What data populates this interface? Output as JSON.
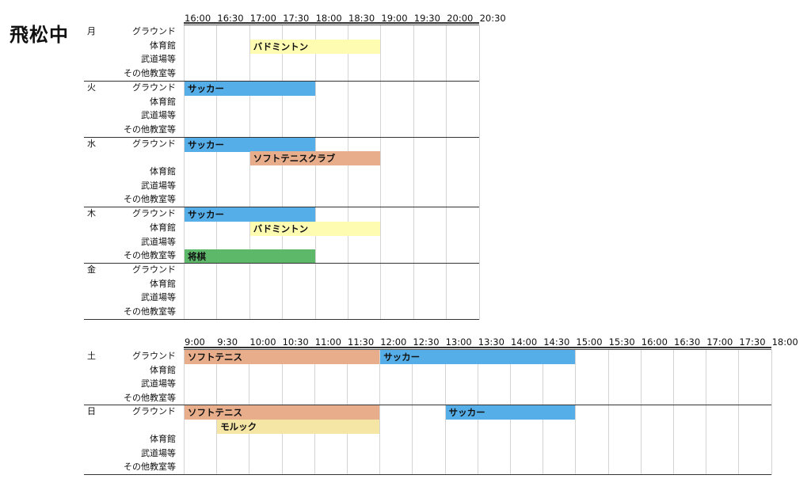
{
  "title": "飛松中",
  "weekday": {
    "times": [
      "16:00",
      "16:30",
      "17:00",
      "17:30",
      "18:00",
      "18:30",
      "19:00",
      "19:30",
      "20:00",
      "20:30"
    ],
    "days": [
      {
        "day": "月",
        "facilities": [
          "グラウンド",
          "体育館",
          "武道場等",
          "その他教室等"
        ],
        "events": [
          {
            "label": "バドミントン",
            "start": "17:00",
            "end": "19:00",
            "row": 1,
            "color": "#fefcb0"
          }
        ]
      },
      {
        "day": "火",
        "facilities": [
          "グラウンド",
          "体育館",
          "武道場等",
          "その他教室等"
        ],
        "events": [
          {
            "label": "サッカー",
            "start": "16:00",
            "end": "18:00",
            "row": 0,
            "color": "#55aee8"
          }
        ]
      },
      {
        "day": "水",
        "facilities": [
          "グラウンド",
          "",
          "体育館",
          "武道場等",
          "その他教室等"
        ],
        "events": [
          {
            "label": "サッカー",
            "start": "16:00",
            "end": "18:00",
            "row": 0,
            "color": "#55aee8"
          },
          {
            "label": "ソフトテニスクラブ",
            "start": "17:00",
            "end": "19:00",
            "row": 1,
            "color": "#e8ae8b"
          }
        ]
      },
      {
        "day": "木",
        "facilities": [
          "グラウンド",
          "体育館",
          "武道場等",
          "その他教室等"
        ],
        "events": [
          {
            "label": "サッカー",
            "start": "16:00",
            "end": "18:00",
            "row": 0,
            "color": "#55aee8"
          },
          {
            "label": "バドミントン",
            "start": "17:00",
            "end": "19:00",
            "row": 1,
            "color": "#fefcb0"
          },
          {
            "label": "将棋",
            "start": "16:00",
            "end": "18:00",
            "row": 3,
            "color": "#5db86a"
          }
        ]
      },
      {
        "day": "金",
        "facilities": [
          "グラウンド",
          "体育館",
          "武道場等",
          "その他教室等"
        ],
        "events": []
      }
    ]
  },
  "weekend": {
    "times": [
      "9:00",
      "9:30",
      "10:00",
      "10:30",
      "11:00",
      "11:30",
      "12:00",
      "12:30",
      "13:00",
      "13:30",
      "14:00",
      "14:30",
      "15:00",
      "15:30",
      "16:00",
      "16:30",
      "17:00",
      "17:30",
      "18:00"
    ],
    "days": [
      {
        "day": "土",
        "facilities": [
          "グラウンド",
          "体育館",
          "武道場等",
          "その他教室等"
        ],
        "events": [
          {
            "label": "ソフトテニス",
            "start": "9:00",
            "end": "12:00",
            "row": 0,
            "color": "#e8ae8b"
          },
          {
            "label": "サッカー",
            "start": "12:00",
            "end": "15:00",
            "row": 0,
            "color": "#55aee8"
          }
        ]
      },
      {
        "day": "日",
        "facilities": [
          "グラウンド",
          "",
          "体育館",
          "武道場等",
          "その他教室等"
        ],
        "events": [
          {
            "label": "ソフトテニス",
            "start": "9:00",
            "end": "12:00",
            "row": 0,
            "color": "#e8ae8b"
          },
          {
            "label": "サッカー",
            "start": "13:00",
            "end": "15:00",
            "row": 0,
            "color": "#55aee8"
          },
          {
            "label": "モルック",
            "start": "9:30",
            "end": "12:00",
            "row": 1,
            "color": "#f6e6a6"
          }
        ]
      }
    ]
  }
}
